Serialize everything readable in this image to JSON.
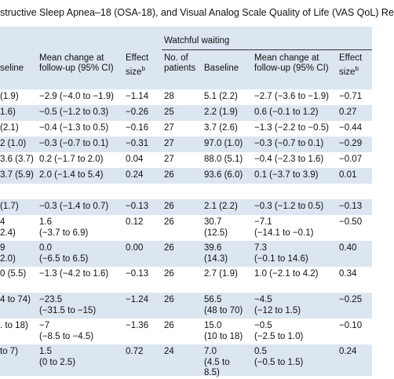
{
  "title": "structive Sleep Apnea–18 (OSA-18), and Visual Analog Scale Quality of Life (VAS QoL) Re",
  "group_label": "Watchful waiting",
  "headers": {
    "baseline_left": "seline",
    "mean_change_left": [
      "Mean change at",
      "follow-up (95% CI)"
    ],
    "effect_left": [
      "Effect",
      "size"
    ],
    "effect_sup": "b",
    "no_patients": [
      "No. of",
      "patients"
    ],
    "baseline": "Baseline",
    "mean_change": [
      "Mean change at",
      "follow-up (95% CI)"
    ],
    "effect": [
      "Effect",
      "size"
    ]
  },
  "rows": [
    {
      "c": [
        [
          "(1.9)"
        ],
        [
          "−2.9 (−4.0 to −1.9)"
        ],
        [
          "−1.14"
        ],
        [
          "28"
        ],
        [
          "5.1 (2.2)"
        ],
        [
          "−2.7 (−3.6 to −1.9)"
        ],
        [
          "−0.71"
        ]
      ]
    },
    {
      "c": [
        [
          "1.6)"
        ],
        [
          "−0.5 (−1.2 to 0.3)"
        ],
        [
          "−0.26"
        ],
        [
          "25"
        ],
        [
          "2.2 (1.9)"
        ],
        [
          "0.6 (−0.1 to 1.2)"
        ],
        [
          "0.27"
        ]
      ]
    },
    {
      "c": [
        [
          "(2.1)"
        ],
        [
          "−0.4 (−1.3 to 0.5)"
        ],
        [
          "−0.16"
        ],
        [
          "27"
        ],
        [
          "3.7 (2.6)"
        ],
        [
          "−1.3 (−2.2 to −0.5)"
        ],
        [
          "−0.44"
        ]
      ]
    },
    {
      "c": [
        [
          "2 (1.0)"
        ],
        [
          "−0.3 (−0.7 to 0.1)"
        ],
        [
          "−0.31"
        ],
        [
          "27"
        ],
        [
          "97.0 (1.0)"
        ],
        [
          "−0.3 (−0.7 to 0.1)"
        ],
        [
          "−0.29"
        ]
      ]
    },
    {
      "c": [
        [
          "3.6 (3.7)"
        ],
        [
          "0.2 (−1.7 to 2.0)"
        ],
        [
          "0.04"
        ],
        [
          "27"
        ],
        [
          "88.0 (5.1)"
        ],
        [
          "−0.4 (−2.3 to 1.6)"
        ],
        [
          "−0.07"
        ]
      ]
    },
    {
      "c": [
        [
          "3.7 (5.9)"
        ],
        [
          "2.0 (−1.4 to 5.4)"
        ],
        [
          "0.24"
        ],
        [
          "26"
        ],
        [
          "93.6 (6.0)"
        ],
        [
          "0.1 (−3.7 to 3.9)"
        ],
        [
          "0.01"
        ]
      ]
    },
    {
      "c": [
        [
          ""
        ],
        [
          ""
        ],
        [
          ""
        ],
        [
          ""
        ],
        [
          ""
        ],
        [
          ""
        ],
        [
          ""
        ]
      ]
    },
    {
      "c": [
        [
          "(1.7)"
        ],
        [
          "−0.3 (−1.4 to 0.7)"
        ],
        [
          "−0.13"
        ],
        [
          "26"
        ],
        [
          "2.1 (2.2)"
        ],
        [
          "−0.3 (−1.2 to 0.5)"
        ],
        [
          "−0.13"
        ]
      ]
    },
    {
      "c": [
        [
          "4",
          "2.4)"
        ],
        [
          "1.6",
          "(−3.7 to 6.9)"
        ],
        [
          "0.12"
        ],
        [
          "26"
        ],
        [
          "30.7",
          "(12.5)"
        ],
        [
          "−7.1",
          "(−14.1 to −0.1)"
        ],
        [
          "−0.50"
        ]
      ]
    },
    {
      "c": [
        [
          "9",
          "2.0)"
        ],
        [
          "0.0",
          "(−6.5 to 6.5)"
        ],
        [
          "0.00"
        ],
        [
          "26"
        ],
        [
          "39.6",
          "(14.3)"
        ],
        [
          "7.3",
          "(−0.1 to 14.6)"
        ],
        [
          "0.40"
        ]
      ]
    },
    {
      "c": [
        [
          "0 (5.5)"
        ],
        [
          "−1.3 (−4.2 to 1.6)"
        ],
        [
          "−0.13"
        ],
        [
          "26"
        ],
        [
          "2.7 (1.9)"
        ],
        [
          "1.0 (−2.1 to 4.2)"
        ],
        [
          "0.34"
        ]
      ]
    },
    {
      "c": [
        [
          "",
          "4 to 74)"
        ],
        [
          "−23.5",
          "(−31.5 to −15)"
        ],
        [
          "−1.24"
        ],
        [
          "26"
        ],
        [
          "56.5",
          "(48 to 70)"
        ],
        [
          "−4.5",
          "(−12 to 1.5)"
        ],
        [
          "−0.25"
        ]
      ]
    },
    {
      "c": [
        [
          "",
          ". to 18)"
        ],
        [
          "−7",
          "(−8.5 to −4.5)"
        ],
        [
          "−1.36"
        ],
        [
          "26"
        ],
        [
          "15.0",
          "(10 to 18)"
        ],
        [
          "−0.5",
          "(−2.5 to 1.0)"
        ],
        [
          "−0.10"
        ]
      ]
    },
    {
      "c": [
        [
          "",
          "to 7)"
        ],
        [
          "1.5",
          "(0 to 2.5)"
        ],
        [
          "0.72"
        ],
        [
          "24"
        ],
        [
          "7.0",
          "(4.5 to",
          "8.5)"
        ],
        [
          "0.5",
          "(−0.5 to 1.5)"
        ],
        [
          "0.24"
        ]
      ]
    }
  ]
}
